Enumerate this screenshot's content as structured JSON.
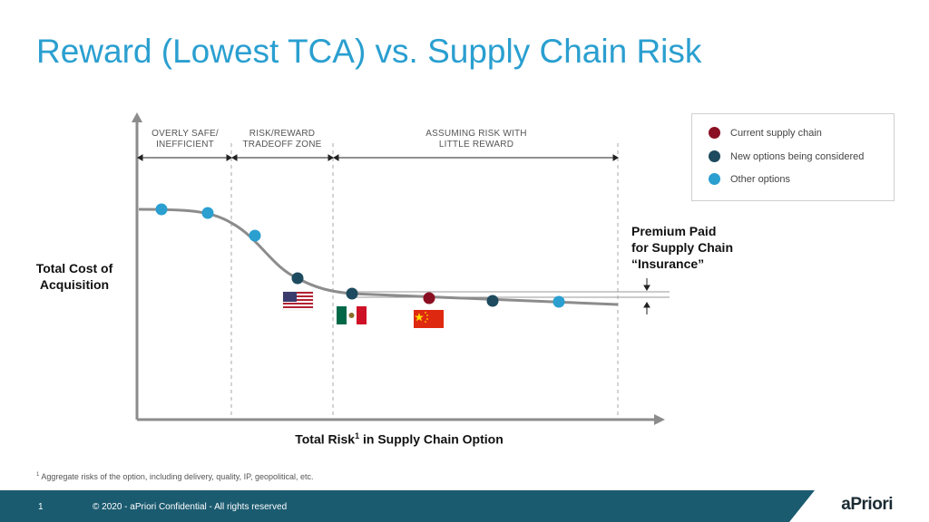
{
  "page": {
    "title": "Reward (Lowest TCA) vs. Supply Chain Risk",
    "footnote_mark": "1",
    "footnote_text": " Aggregate risks of the option, including delivery,  quality, IP, geopolitical, etc.",
    "page_number": "1",
    "copyright": "© 2020  -  aPriori Confidential  -  All rights reserved",
    "logo": "aPriori"
  },
  "chart_data": {
    "type": "line",
    "ylabel": "Total Cost of Acquisition",
    "xlabel": "Total Risk",
    "xlabel_sup": "1",
    "xlabel_suffix": " in Supply Chain Option",
    "zones": [
      {
        "label_line1": "OVERLY SAFE/",
        "label_line2": "INEFFICIENT"
      },
      {
        "label_line1": "RISK/REWARD",
        "label_line2": "TRADEOFF ZONE"
      },
      {
        "label_line1": "ASSUMING  RISK WITH",
        "label_line2": "LITTLE REWARD"
      }
    ],
    "premium_annotation": [
      "Premium Paid",
      "for Supply Chain",
      "“Insurance”"
    ],
    "legend": {
      "placement": "top-right",
      "items": [
        {
          "label": "Current supply chain",
          "color": "#8b0f22"
        },
        {
          "label": "New options being considered",
          "color": "#1d4a5e"
        },
        {
          "label": "Other options",
          "color": "#2a9fd0"
        }
      ]
    },
    "points": [
      {
        "kind": "other",
        "flag": ""
      },
      {
        "kind": "other",
        "flag": ""
      },
      {
        "kind": "other",
        "flag": ""
      },
      {
        "kind": "new",
        "flag": "us-flag"
      },
      {
        "kind": "new",
        "flag": "mexico-flag"
      },
      {
        "kind": "current",
        "flag": "china-flag"
      },
      {
        "kind": "new",
        "flag": ""
      },
      {
        "kind": "other",
        "flag": ""
      }
    ],
    "colors": {
      "curve": "#8c8c8c",
      "axis": "#8c8c8c",
      "title": "#2a9fd0",
      "footer": "#1b5b70"
    }
  }
}
